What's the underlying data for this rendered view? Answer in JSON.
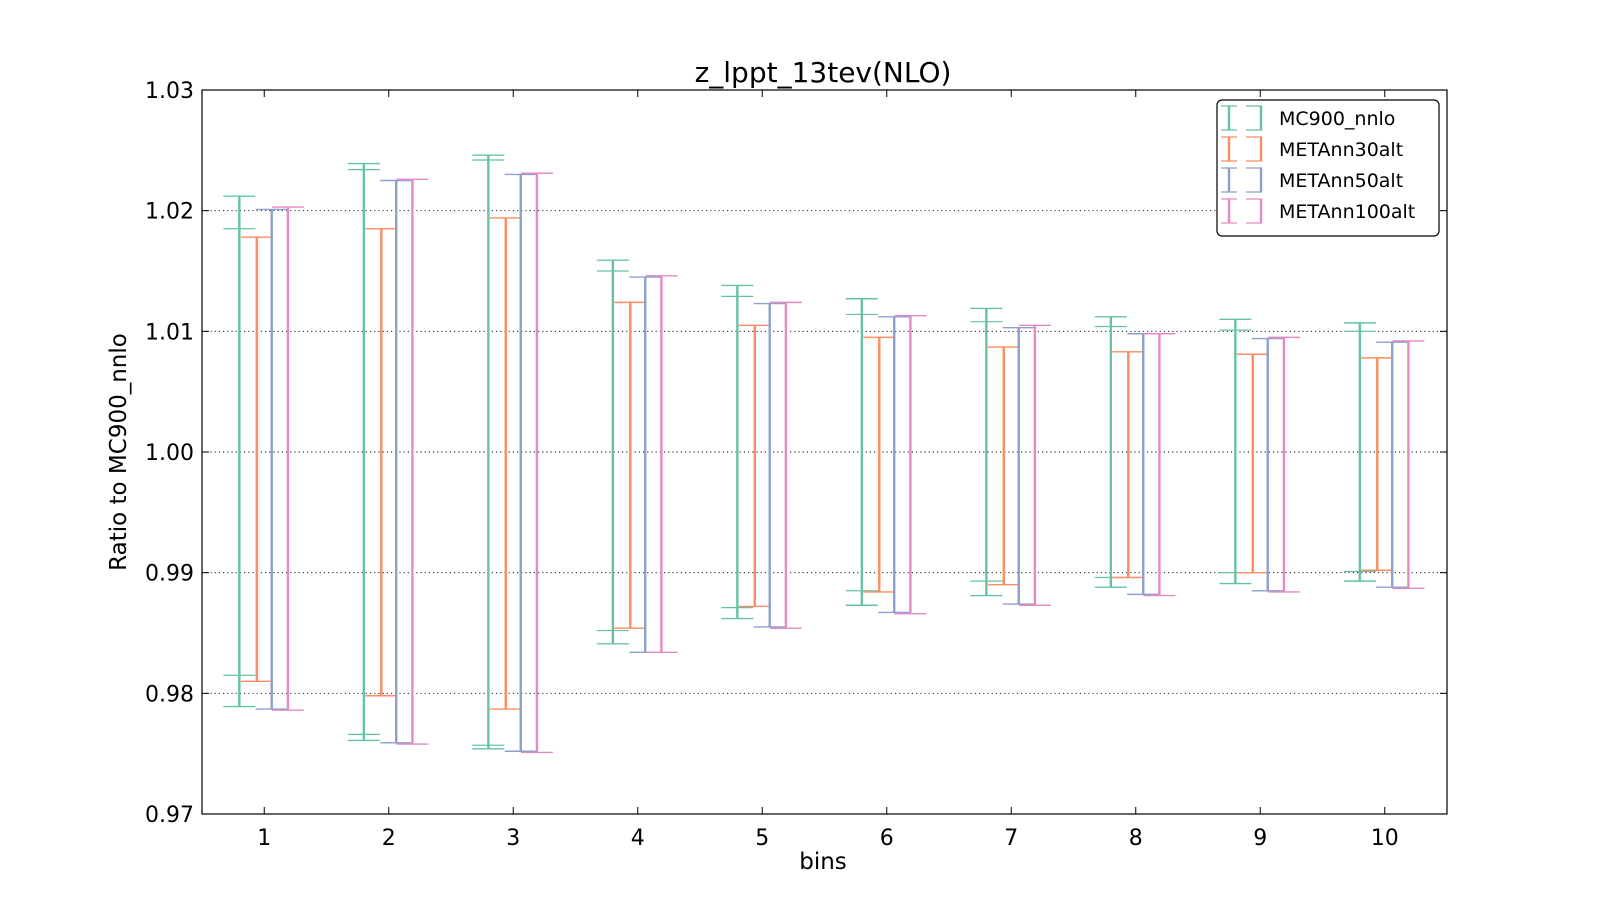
{
  "chart_data": {
    "type": "errorbar",
    "title": "z_lppt_13tev(NLO)",
    "xlabel": "bins",
    "ylabel": "Ratio to MC900_nnlo",
    "xlim": [
      0.5,
      10.5
    ],
    "ylim": [
      0.97,
      1.03
    ],
    "xticks": [
      "1",
      "2",
      "3",
      "4",
      "5",
      "6",
      "7",
      "8",
      "9",
      "10"
    ],
    "yticks": [
      "0.97",
      "0.98",
      "0.99",
      "1.00",
      "1.01",
      "1.02",
      "1.03"
    ],
    "grid": "horizontal-dotted",
    "legend_position": "top-right",
    "series": [
      {
        "name": "MC900_nnlo",
        "color": "#66c2a5",
        "x": [
          1,
          2,
          3,
          4,
          5,
          6,
          7,
          8,
          9,
          10
        ],
        "upper": [
          1.0212,
          1.0239,
          1.0246,
          1.0159,
          1.0138,
          1.0127,
          1.0119,
          1.0112,
          1.011,
          1.0107
        ],
        "lower": [
          0.9789,
          0.9761,
          0.9754,
          0.9841,
          0.9862,
          0.9873,
          0.9881,
          0.9888,
          0.9891,
          0.9893
        ],
        "inner_upper": [
          1.0185,
          1.0234,
          1.0242,
          1.015,
          1.0129,
          1.0114,
          1.0108,
          1.0104,
          1.0101,
          1.01
        ],
        "inner_lower": [
          0.9815,
          0.9766,
          0.9757,
          0.9852,
          0.9871,
          0.9885,
          0.9893,
          0.9896,
          0.99,
          0.9901
        ]
      },
      {
        "name": "METAnn30alt",
        "color": "#fc8d62",
        "x": [
          1,
          2,
          3,
          4,
          5,
          6,
          7,
          8,
          9,
          10
        ],
        "upper": [
          1.0178,
          1.0185,
          1.0194,
          1.0124,
          1.0105,
          1.0095,
          1.0087,
          1.0083,
          1.0081,
          1.0078
        ],
        "lower": [
          0.981,
          0.9798,
          0.9787,
          0.9854,
          0.9872,
          0.9884,
          0.989,
          0.9896,
          0.99,
          0.9902
        ]
      },
      {
        "name": "METAnn50alt",
        "color": "#8da0cb",
        "x": [
          1,
          2,
          3,
          4,
          5,
          6,
          7,
          8,
          9,
          10
        ],
        "upper": [
          1.0201,
          1.0225,
          1.023,
          1.0145,
          1.0123,
          1.0112,
          1.0103,
          1.0098,
          1.0094,
          1.0091
        ],
        "lower": [
          0.9787,
          0.9759,
          0.9752,
          0.9834,
          0.9855,
          0.9867,
          0.9874,
          0.9882,
          0.9885,
          0.9888
        ]
      },
      {
        "name": "METAnn100alt",
        "color": "#e78ac3",
        "x": [
          1,
          2,
          3,
          4,
          5,
          6,
          7,
          8,
          9,
          10
        ],
        "upper": [
          1.0203,
          1.0226,
          1.0231,
          1.0146,
          1.0124,
          1.0113,
          1.0105,
          1.0098,
          1.0095,
          1.0092
        ],
        "lower": [
          0.9786,
          0.9758,
          0.9751,
          0.9834,
          0.9854,
          0.9866,
          0.9873,
          0.9881,
          0.9884,
          0.9887
        ]
      }
    ]
  }
}
